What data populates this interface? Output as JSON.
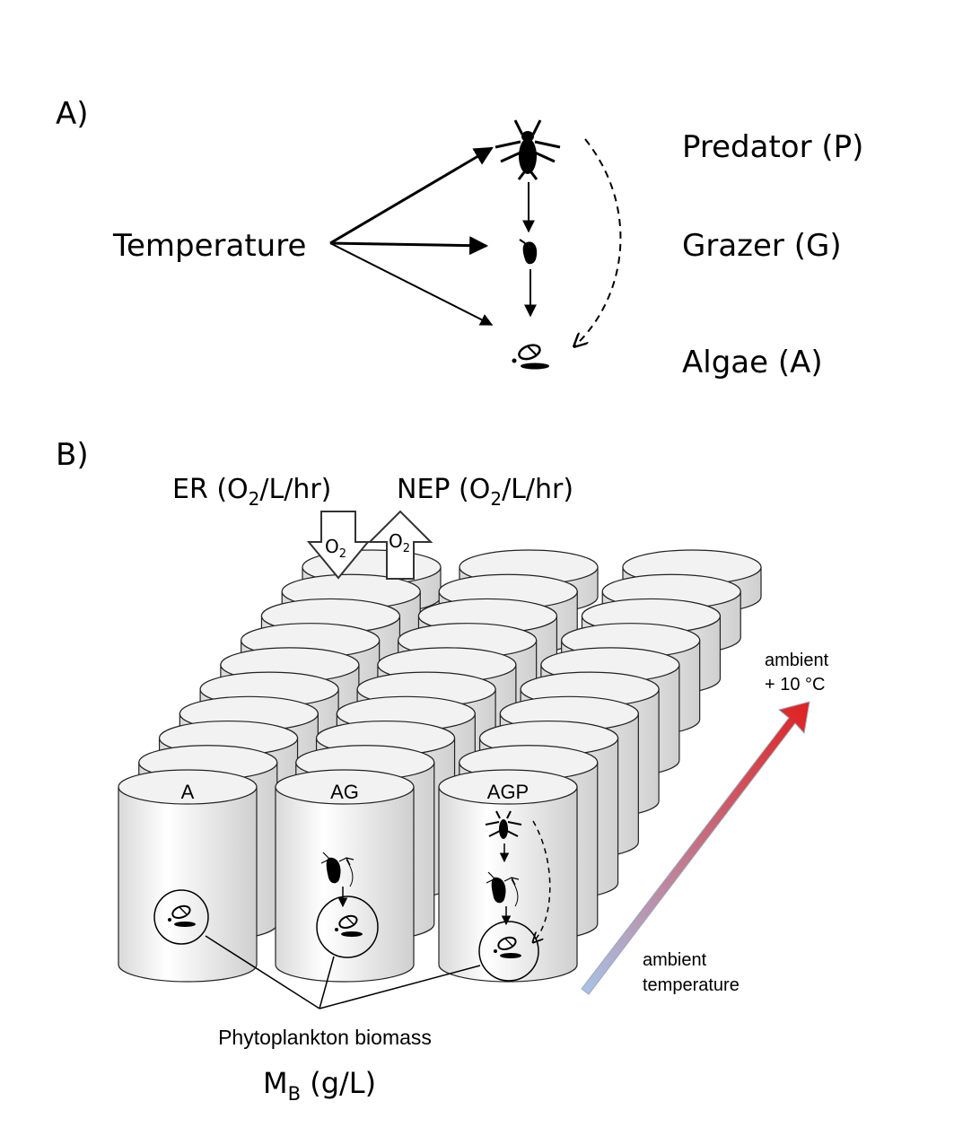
{
  "panel_a": {
    "label": "A)",
    "driver": "Temperature",
    "levels": {
      "predator": "Predator (P)",
      "grazer": "Grazer (G)",
      "algae": "Algae (A)"
    }
  },
  "panel_b": {
    "label": "B)",
    "er_label": {
      "main": "ER (O",
      "sub": "2",
      "rest": "/L/hr)"
    },
    "nep_label": {
      "main": "NEP (O",
      "sub": "2",
      "rest": "/L/hr)"
    },
    "o2_symbol": {
      "main": "O",
      "sub": "2"
    },
    "treatments": [
      "A",
      "AG",
      "AGP"
    ],
    "gradient_top": {
      "line1": "ambient",
      "line2": "+ 10 °C"
    },
    "gradient_bottom": {
      "line1": "ambient",
      "line2": "temperature"
    },
    "biomass_label": "Phytoplankton biomass",
    "biomass_unit": {
      "main": "M",
      "sub": "B",
      "rest": " (g/L)"
    },
    "gradient_colors": {
      "warm": "#e02020",
      "cool": "#a9c4e8"
    }
  }
}
